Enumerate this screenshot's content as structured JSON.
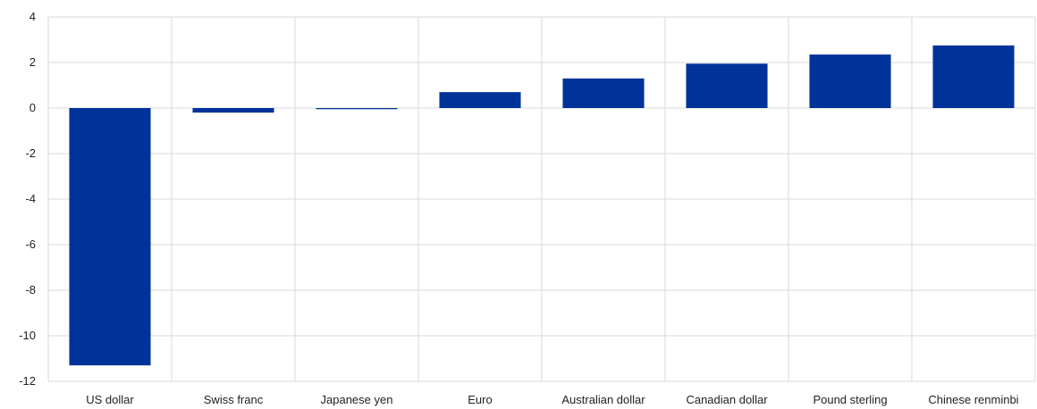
{
  "chart_data": {
    "type": "bar",
    "categories": [
      "US dollar",
      "Swiss franc",
      "Japanese yen",
      "Euro",
      "Australian dollar",
      "Canadian dollar",
      "Pound sterling",
      "Chinese renminbi"
    ],
    "values": [
      -11.3,
      -0.2,
      -0.05,
      0.7,
      1.3,
      1.95,
      2.35,
      2.75
    ],
    "title": "",
    "xlabel": "",
    "ylabel": "",
    "ylim": [
      -12,
      4
    ],
    "yticks": [
      4,
      2,
      0,
      -2,
      -4,
      -6,
      -8,
      -10,
      -12
    ],
    "grid": true,
    "legend": "none",
    "colors": {
      "bar": "#003399",
      "grid": "#d9d9d9"
    }
  }
}
